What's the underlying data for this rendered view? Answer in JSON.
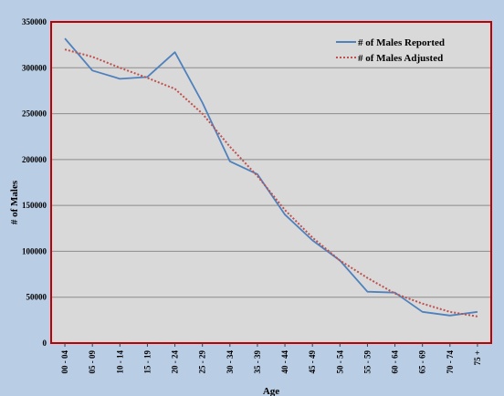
{
  "chart_data": {
    "type": "line",
    "title": "",
    "xlabel": "Age",
    "ylabel": "# of Males",
    "ylim": [
      0,
      350000
    ],
    "y_ticks": [
      0,
      50000,
      100000,
      150000,
      200000,
      250000,
      300000,
      350000
    ],
    "grid": "horizontal",
    "legend_placement": "top-right",
    "categories": [
      "00 - 04",
      "05 - 09",
      "10 - 14",
      "15 - 19",
      "20 - 24",
      "25 - 29",
      "30 - 34",
      "35 - 39",
      "40 - 44",
      "45 - 49",
      "50 - 54",
      "55 - 59",
      "60 - 64",
      "65 - 69",
      "70 - 74",
      "75 +"
    ],
    "series": [
      {
        "name": "# of Males Reported",
        "style": "solid",
        "color": "#4F81BD",
        "values": [
          332000,
          297000,
          288000,
          290000,
          317000,
          262000,
          198000,
          184000,
          140000,
          112000,
          90000,
          56000,
          55000,
          34000,
          30000,
          34000
        ]
      },
      {
        "name": "# of Males Adjusted",
        "style": "dotted",
        "color": "#C0504D",
        "values": [
          320000,
          312000,
          300000,
          289000,
          277000,
          250000,
          214000,
          182000,
          145000,
          115000,
          90000,
          71000,
          54000,
          43000,
          34000,
          29000
        ]
      }
    ]
  },
  "colors": {
    "outer_background": "#B9CDE5",
    "plot_background": "#D9D9D9",
    "plot_border": "#C00000",
    "gridline": "#8C8C8C"
  }
}
